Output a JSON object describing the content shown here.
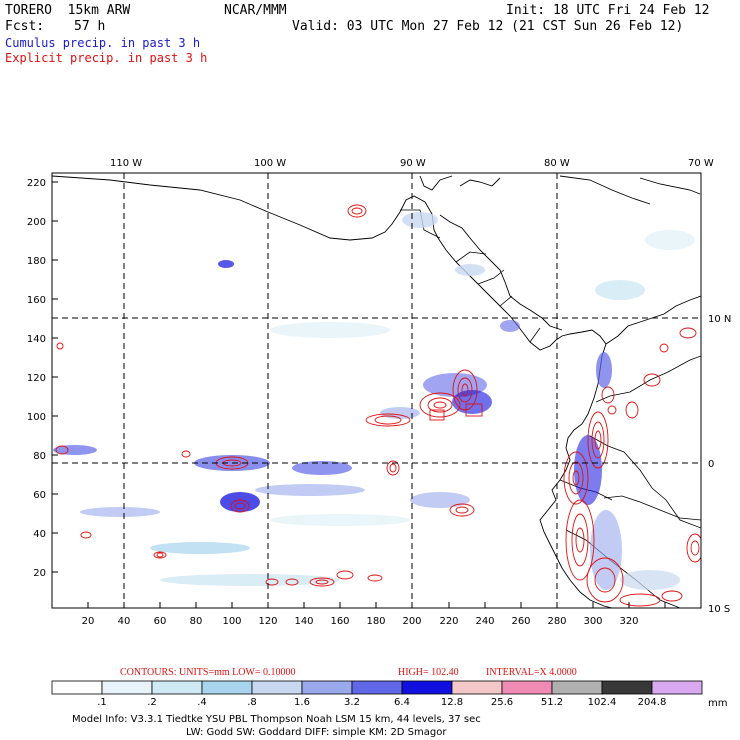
{
  "header": {
    "model": "TORERO  15km ARW",
    "org": "NCAR/MMM",
    "init": "Init: 18 UTC Fri 24 Feb 12",
    "fcst_label": "Fcst:",
    "fcst_value": "57 h",
    "valid": "Valid: 03 UTC Mon 27 Feb 12 (21 CST Sun 26 Feb 12)",
    "legend_cumulus": "Cumulus precip. in past 3 h",
    "legend_explicit": "Explicit precip. in past 3 h"
  },
  "axes": {
    "top_lon_labels": [
      "110 W",
      "100 W",
      "90 W",
      "80 W",
      "70 W"
    ],
    "right_lat_labels": [
      "10 N",
      "0",
      "10 S"
    ],
    "left_y_ticks": [
      "20",
      "40",
      "60",
      "80",
      "100",
      "120",
      "140",
      "160",
      "180",
      "200",
      "220"
    ],
    "bottom_x_ticks": [
      "20",
      "40",
      "60",
      "80",
      "100",
      "120",
      "140",
      "160",
      "180",
      "200",
      "220",
      "240",
      "260",
      "280",
      "300",
      "320"
    ]
  },
  "contour_info": {
    "contours": "CONTOURS:  UNITS=mm  LOW= 0.10000",
    "high": "HIGH=  102.40",
    "interval": "INTERVAL=X  4.0000"
  },
  "colorbar": {
    "labels": [
      ".1",
      ".2",
      ".4",
      ".8",
      "1.6",
      "3.2",
      "6.4",
      "12.8",
      "25.6",
      "51.2",
      "102.4",
      "204.8"
    ],
    "units": "mm",
    "colors": [
      "#ffffff",
      "#e8f4fa",
      "#cfe9f5",
      "#a8d4ee",
      "#c8d8f0",
      "#9aa8ec",
      "#6068e8",
      "#1010e0",
      "#f4c8c8",
      "#f08cb4",
      "#b0b0b0",
      "#383838",
      "#d8a8f0"
    ]
  },
  "footer": {
    "line1": "Model Info: V3.3.1   Tiedtke YSU PBL  Thompson    Noah LSM  15 km,   44 levels,   37 sec",
    "line2": "LW: Godd SW: Goddard DIFF: simple KM: 2D Smagor"
  }
}
